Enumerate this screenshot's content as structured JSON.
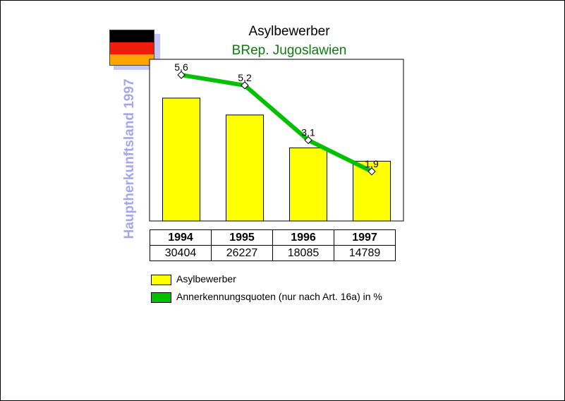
{
  "title": "Asylbewerber",
  "subtitle": "BRep. Jugoslawien",
  "side_label": "Hauptherkunftsland 1997",
  "colors": {
    "bar": "#ffff00",
    "line": "#00c000",
    "flag": [
      "#000000",
      "#ee1c0a",
      "#ffa500"
    ],
    "subtitle": "#0f7a0f",
    "side_label": "#a6a6ea"
  },
  "legend": {
    "items": [
      {
        "label": "Asylbewerber",
        "color": "#ffff00"
      },
      {
        "label": "Annerkennungsquoten (nur nach Art. 16a) in %",
        "color": "#00c000"
      }
    ]
  },
  "chart_data": {
    "type": "bar",
    "categories": [
      "1994",
      "1995",
      "1996",
      "1997"
    ],
    "series": [
      {
        "name": "Asylbewerber",
        "type": "bar",
        "values": [
          30404,
          26227,
          18085,
          14789
        ]
      },
      {
        "name": "Annerkennungsquoten (nur nach Art. 16a) in %",
        "type": "line",
        "values": [
          5.6,
          5.2,
          3.1,
          1.9
        ],
        "labels": [
          "5,6",
          "5,2",
          "3,1",
          "1,9"
        ]
      }
    ],
    "table": {
      "years": [
        "1994",
        "1995",
        "1996",
        "1997"
      ],
      "values": [
        "30404",
        "26227",
        "18085",
        "14789"
      ]
    },
    "bar_ylim": [
      0,
      40000
    ],
    "line_ylim": [
      0,
      6.2
    ],
    "grid": false,
    "legend_position": "bottom"
  }
}
